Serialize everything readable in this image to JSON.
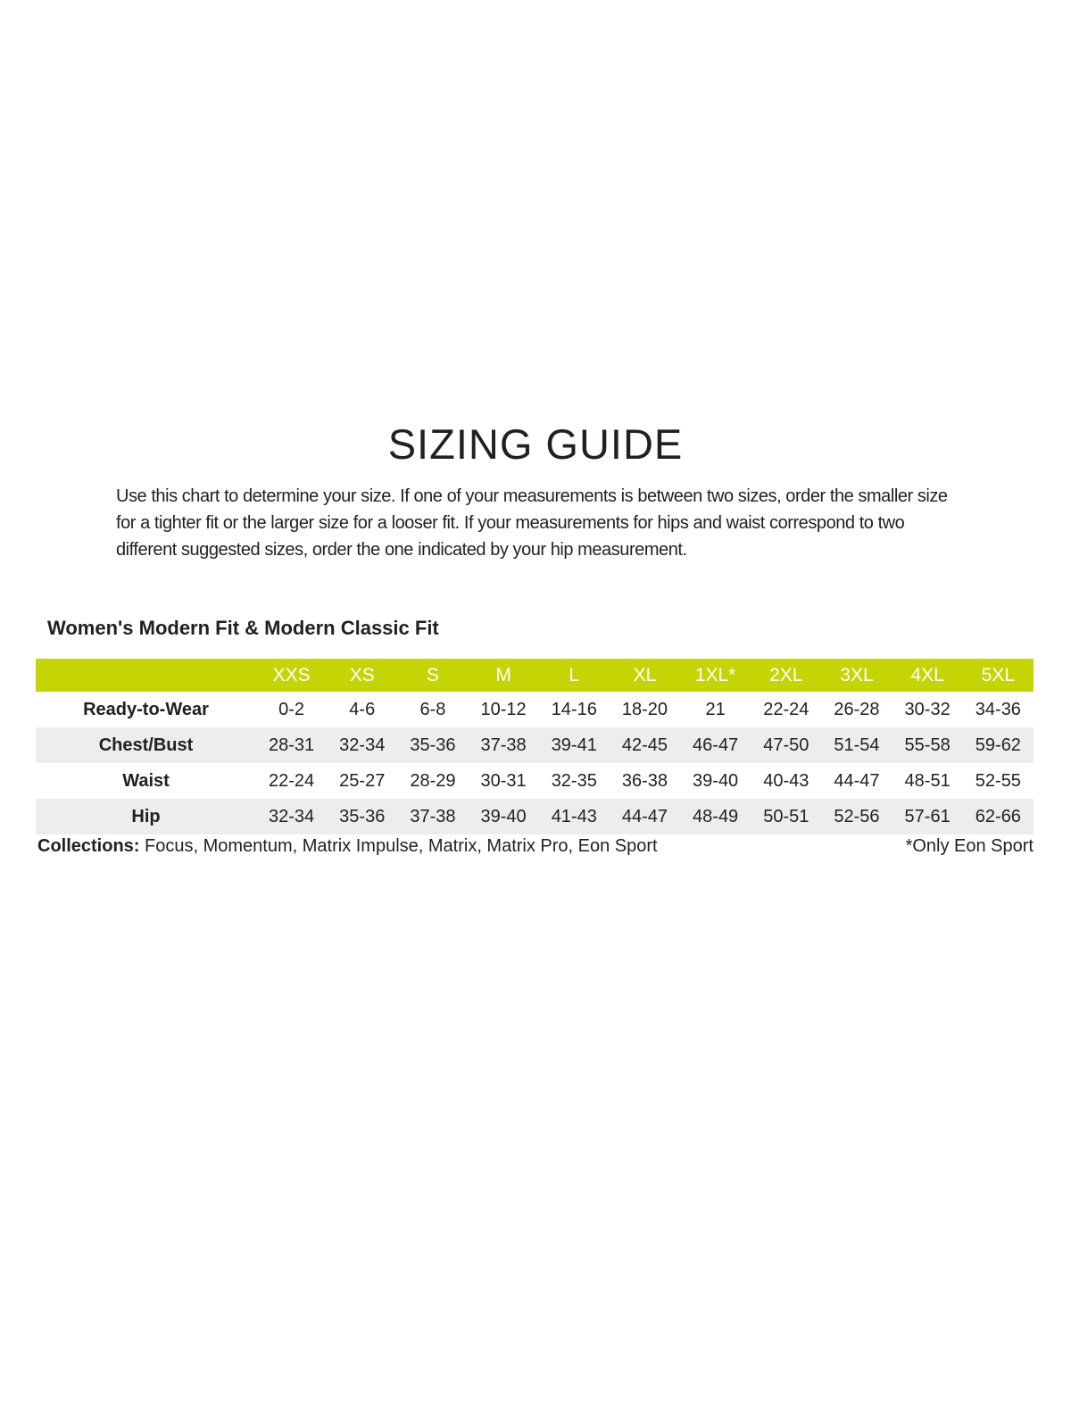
{
  "page": {
    "title": "SIZING GUIDE",
    "intro": "Use this chart to determine your size. If one of your measurements is between two sizes, order the smaller size for a tighter fit or the larger size for a looser fit. If your measurements for hips and waist correspond to two different suggested sizes, order the one indicated by your hip measurement."
  },
  "section": {
    "heading": "Women's Modern Fit & Modern Classic Fit"
  },
  "size_table": {
    "columns": [
      "XXS",
      "XS",
      "S",
      "M",
      "L",
      "XL",
      "1XL*",
      "2XL",
      "3XL",
      "4XL",
      "5XL"
    ],
    "rows": [
      {
        "label": "Ready-to-Wear",
        "values": [
          "0-2",
          "4-6",
          "6-8",
          "10-12",
          "14-16",
          "18-20",
          "21",
          "22-24",
          "26-28",
          "30-32",
          "34-36"
        ]
      },
      {
        "label": "Chest/Bust",
        "values": [
          "28-31",
          "32-34",
          "35-36",
          "37-38",
          "39-41",
          "42-45",
          "46-47",
          "47-50",
          "51-54",
          "55-58",
          "59-62"
        ]
      },
      {
        "label": "Waist",
        "values": [
          "22-24",
          "25-27",
          "28-29",
          "30-31",
          "32-35",
          "36-38",
          "39-40",
          "40-43",
          "44-47",
          "48-51",
          "52-55"
        ]
      },
      {
        "label": "Hip",
        "values": [
          "32-34",
          "35-36",
          "37-38",
          "39-40",
          "41-43",
          "44-47",
          "48-49",
          "50-51",
          "52-56",
          "57-61",
          "62-66"
        ]
      }
    ]
  },
  "footer": {
    "collections_label": "Collections:",
    "collections_list": " Focus, Momentum, Matrix Impulse, Matrix, Matrix Pro, Eon Sport",
    "note": "*Only Eon Sport"
  },
  "colors": {
    "header_bg": "#c5d405",
    "row_alt_bg": "#ededee",
    "text": "#231f20",
    "header_text": "#ffffff"
  }
}
